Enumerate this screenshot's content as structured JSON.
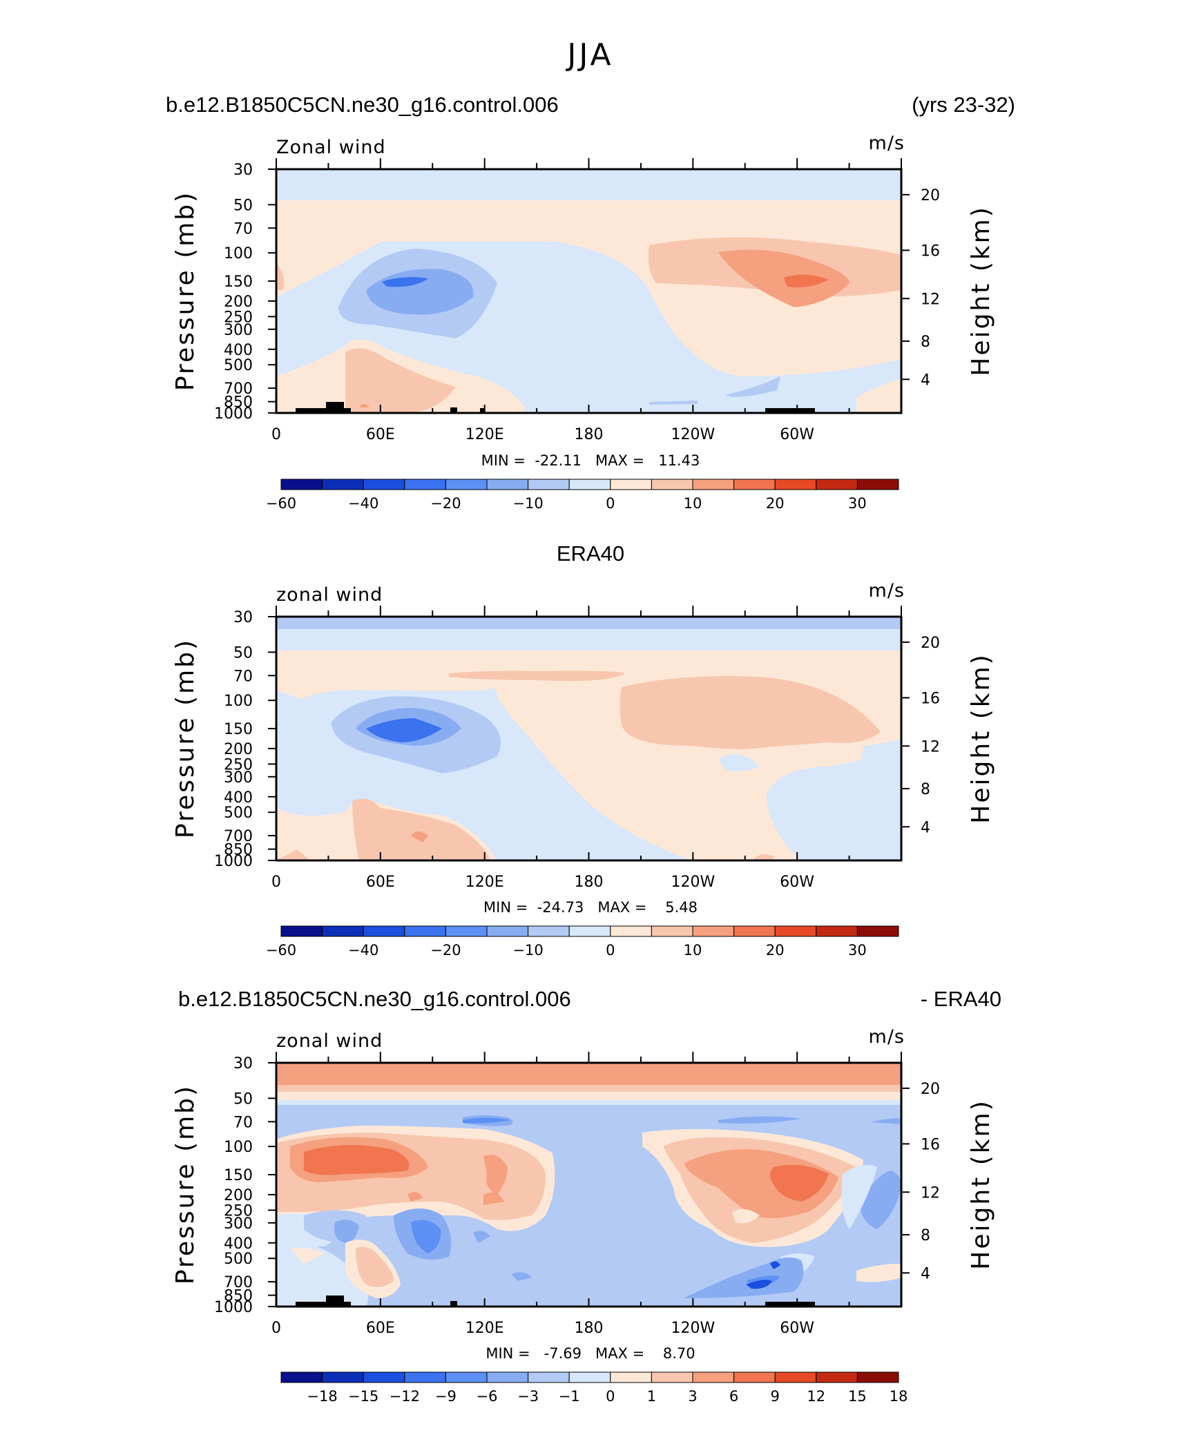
{
  "page": {
    "title": "JJA"
  },
  "colors": {
    "contour_palette": [
      "#08108c",
      "#0b2fb8",
      "#1a4fe0",
      "#3a72f0",
      "#5d90f4",
      "#88acf2",
      "#b3caf5",
      "#d8e7fa",
      "#fde8d8",
      "#f8c6ae",
      "#f5a07f",
      "#f1754f",
      "#e64a26",
      "#c42a12",
      "#8c0c06"
    ],
    "land_mask": "#000000"
  },
  "chart_data": [
    {
      "type": "heatmap",
      "left_title": "b.e12.B1850C5CN.ne30_g16.control.006",
      "right_title": "(yrs 23-32)",
      "corner_left": "Zonal wind",
      "corner_right": "m/s",
      "ylabel": "Pressure (mb)",
      "ylabel_right": "Height (km)",
      "x_ticks": [
        "0",
        "60E",
        "120E",
        "180",
        "120W",
        "60W"
      ],
      "y_ticks": [
        "30",
        "50",
        "70",
        "100",
        "150",
        "200",
        "250",
        "300",
        "400",
        "500",
        "700",
        "850",
        "1000"
      ],
      "y_right_ticks": [
        "20",
        "16",
        "12",
        "8",
        "4"
      ],
      "stats": "MIN =  -22.11   MAX =   11.43",
      "min": -22.11,
      "max": 11.43,
      "colorbar_labels": [
        "-60",
        "-40",
        "-20",
        "-10",
        "0",
        "10",
        "20",
        "30"
      ],
      "features": [
        {
          "kind": "background",
          "value": -3
        },
        {
          "kind": "band",
          "p_top": 30,
          "p_bottom": 48,
          "value": -3
        },
        {
          "kind": "band",
          "p_top": 48,
          "p_bottom": 100,
          "value": 3
        },
        {
          "kind": "core",
          "lon": 75,
          "p": 150,
          "value": -22,
          "extent": "40E-105E"
        },
        {
          "kind": "core",
          "lon": 300,
          "p": 150,
          "value": 11,
          "extent": "210E-330E"
        },
        {
          "kind": "core",
          "lon": 55,
          "p": 600,
          "value": 4,
          "extent": "20E-110E"
        }
      ]
    },
    {
      "type": "heatmap",
      "left_title": "",
      "center_title": "ERA40",
      "right_title": "",
      "corner_left": "zonal wind",
      "corner_right": "m/s",
      "ylabel": "Pressure (mb)",
      "ylabel_right": "Height (km)",
      "x_ticks": [
        "0",
        "60E",
        "120E",
        "180",
        "120W",
        "60W"
      ],
      "y_ticks": [
        "30",
        "50",
        "70",
        "100",
        "150",
        "200",
        "250",
        "300",
        "400",
        "500",
        "700",
        "850",
        "1000"
      ],
      "y_right_ticks": [
        "20",
        "16",
        "12",
        "8",
        "4"
      ],
      "stats": "MIN =  -24.73   MAX =    5.48",
      "min": -24.73,
      "max": 5.48,
      "colorbar_labels": [
        "-60",
        "-40",
        "-20",
        "-10",
        "0",
        "10",
        "20",
        "30"
      ],
      "features": [
        {
          "kind": "background",
          "value": -3
        },
        {
          "kind": "band",
          "p_top": 30,
          "p_bottom": 48,
          "value": -6
        },
        {
          "kind": "band",
          "p_top": 48,
          "p_bottom": 100,
          "value": 3
        },
        {
          "kind": "core",
          "lon": 80,
          "p": 150,
          "value": -24,
          "extent": "35E-140E"
        },
        {
          "kind": "core",
          "lon": 280,
          "p": 130,
          "value": 5,
          "extent": "200E-340E"
        },
        {
          "kind": "core",
          "lon": 60,
          "p": 650,
          "value": 4,
          "extent": "40E-120E"
        }
      ]
    },
    {
      "type": "heatmap",
      "left_title": "b.e12.B1850C5CN.ne30_g16.control.006",
      "right_title": "- ERA40",
      "corner_left": "zonal wind",
      "corner_right": "m/s",
      "ylabel": "Pressure (mb)",
      "ylabel_right": "Height (km)",
      "x_ticks": [
        "0",
        "60E",
        "120E",
        "180",
        "120W",
        "60W"
      ],
      "y_ticks": [
        "30",
        "50",
        "70",
        "100",
        "150",
        "200",
        "250",
        "300",
        "400",
        "500",
        "700",
        "850",
        "1000"
      ],
      "y_right_ticks": [
        "20",
        "16",
        "12",
        "8",
        "4"
      ],
      "stats": "MIN =   -7.69   MAX =    8.70",
      "min": -7.69,
      "max": 8.7,
      "colorbar_labels": [
        "-18",
        "-15",
        "-12",
        "-9",
        "-6",
        "-3",
        "-1",
        "0",
        "1",
        "3",
        "6",
        "9",
        "12",
        "15",
        "18"
      ],
      "features": [
        {
          "kind": "background",
          "value": -2
        },
        {
          "kind": "band",
          "p_top": 30,
          "p_bottom": 48,
          "value": 7
        },
        {
          "kind": "band",
          "p_top": 55,
          "p_bottom": 95,
          "value": -3
        },
        {
          "kind": "core",
          "lon": 35,
          "p": 130,
          "value": 8,
          "extent": "0-150E"
        },
        {
          "kind": "core",
          "lon": 300,
          "p": 150,
          "value": 8.7,
          "extent": "220E-340E"
        },
        {
          "kind": "core",
          "lon": 180,
          "p": 300,
          "value": -4,
          "extent": "155E-215E"
        }
      ]
    }
  ]
}
